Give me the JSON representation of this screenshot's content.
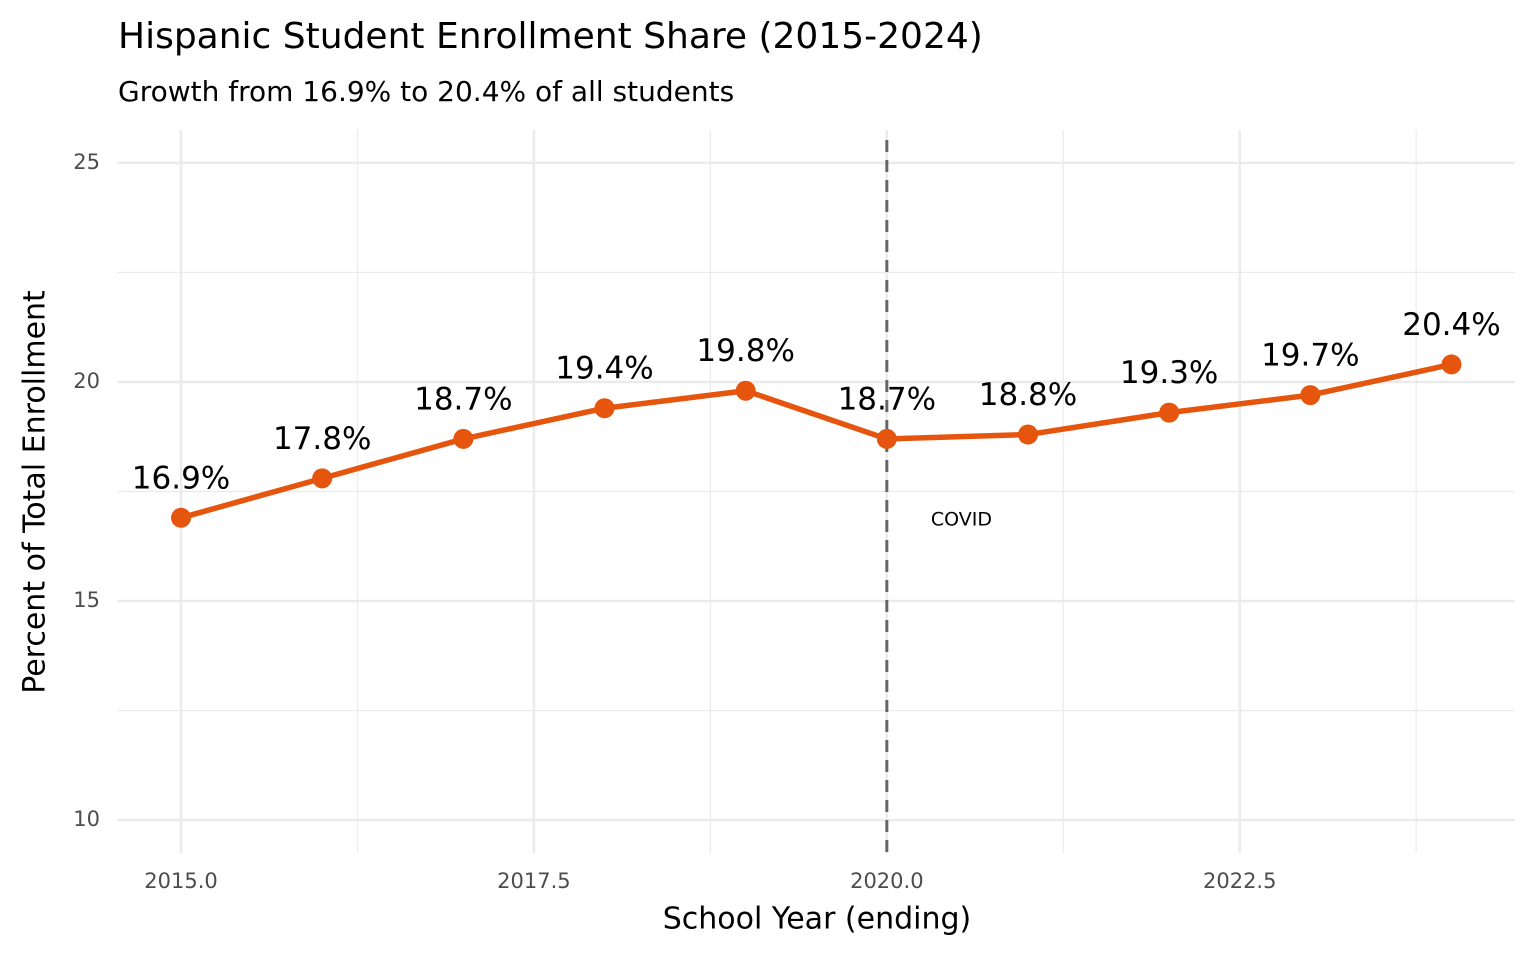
{
  "chart_data": {
    "type": "line",
    "title": "Hispanic Student Enrollment Share (2015-2024)",
    "subtitle": "Growth from 16.9% to 20.4% of all students",
    "x_label": "School Year (ending)",
    "y_label": "Percent of Total Enrollment",
    "x": [
      2015,
      2016,
      2017,
      2018,
      2019,
      2020,
      2021,
      2022,
      2023,
      2024
    ],
    "series": [
      {
        "color": "#E6550D",
        "values": [
          16.9,
          17.8,
          18.7,
          19.4,
          19.8,
          18.7,
          18.8,
          19.3,
          19.7,
          20.4
        ],
        "value_labels": [
          "16.9%",
          "17.8%",
          "18.7%",
          "19.4%",
          "19.8%",
          "18.7%",
          "18.8%",
          "19.3%",
          "19.7%",
          "20.4%"
        ]
      }
    ],
    "xlim": [
      2014.55,
      2024.45
    ],
    "xticks": [
      {
        "value": 2015,
        "label": "2015.0"
      },
      2017.5,
      {
        "value": 2020,
        "label": "2020.0"
      },
      2022.5
    ],
    "ylim": [
      9.25,
      25.75
    ],
    "yticks": [
      10,
      15,
      20,
      25
    ],
    "grid": true,
    "vline": {
      "x": 2020,
      "label": "COVID"
    }
  }
}
